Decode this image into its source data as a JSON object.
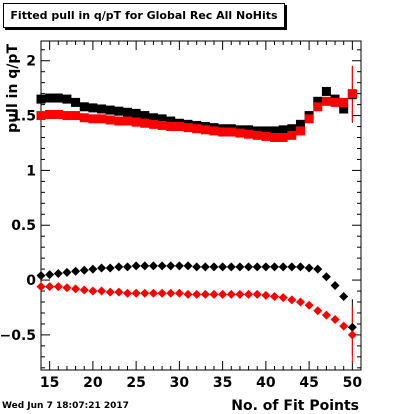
{
  "header": {
    "title": "Fitted pull in q/pT for Global Rec All NoHits"
  },
  "footer": {
    "timestamp": "Wed Jun  7 18:07:21 2017"
  },
  "chart_data": {
    "type": "scatter",
    "title": "Fitted pull in q/pT for Global Rec All NoHits",
    "xlabel": "No. of Fit Points",
    "ylabel": "pull in q/pT",
    "xlim": [
      14,
      51
    ],
    "ylim": [
      -0.82,
      2.18
    ],
    "x_ticks": [
      15,
      20,
      25,
      30,
      35,
      40,
      45,
      50
    ],
    "x_tick_labels": [
      "15",
      "20",
      "25",
      "30",
      "35",
      "40",
      "45",
      "50"
    ],
    "y_ticks": [
      -0.5,
      0,
      0.5,
      1,
      1.5,
      2
    ],
    "y_tick_labels": [
      "−0.5",
      "0",
      "0.5",
      "1",
      "1.5",
      "2"
    ],
    "grid": false,
    "series": [
      {
        "marker": "square",
        "color": "#000000",
        "x": [
          14,
          15,
          16,
          17,
          18,
          19,
          20,
          21,
          22,
          23,
          24,
          25,
          26,
          27,
          28,
          29,
          30,
          31,
          32,
          33,
          34,
          35,
          36,
          37,
          38,
          39,
          40,
          41,
          42,
          43,
          44,
          45,
          46,
          47,
          48,
          49,
          50
        ],
        "y": [
          1.65,
          1.66,
          1.66,
          1.65,
          1.62,
          1.58,
          1.57,
          1.56,
          1.55,
          1.54,
          1.53,
          1.52,
          1.5,
          1.48,
          1.47,
          1.45,
          1.43,
          1.42,
          1.41,
          1.4,
          1.39,
          1.38,
          1.38,
          1.37,
          1.37,
          1.36,
          1.36,
          1.36,
          1.37,
          1.38,
          1.42,
          1.5,
          1.63,
          1.72,
          1.65,
          1.56,
          1.69
        ]
      },
      {
        "marker": "square",
        "color": "#ff0000",
        "x": [
          14,
          15,
          16,
          17,
          18,
          19,
          20,
          21,
          22,
          23,
          24,
          25,
          26,
          27,
          28,
          29,
          30,
          31,
          32,
          33,
          34,
          35,
          36,
          37,
          38,
          39,
          40,
          41,
          42,
          43,
          44,
          45,
          46,
          47,
          48,
          49,
          50
        ],
        "y": [
          1.5,
          1.51,
          1.51,
          1.5,
          1.5,
          1.48,
          1.47,
          1.47,
          1.46,
          1.45,
          1.45,
          1.44,
          1.43,
          1.42,
          1.41,
          1.4,
          1.4,
          1.39,
          1.38,
          1.37,
          1.36,
          1.35,
          1.35,
          1.34,
          1.33,
          1.32,
          1.31,
          1.3,
          1.3,
          1.32,
          1.36,
          1.47,
          1.58,
          1.63,
          1.62,
          1.62,
          1.7
        ]
      },
      {
        "marker": "diamond",
        "color": "#000000",
        "x": [
          14,
          15,
          16,
          17,
          18,
          19,
          20,
          21,
          22,
          23,
          24,
          25,
          26,
          27,
          28,
          29,
          30,
          31,
          32,
          33,
          34,
          35,
          36,
          37,
          38,
          39,
          40,
          41,
          42,
          43,
          44,
          45,
          46,
          47,
          48,
          49,
          50
        ],
        "y": [
          0.04,
          0.05,
          0.06,
          0.07,
          0.08,
          0.09,
          0.1,
          0.11,
          0.11,
          0.12,
          0.12,
          0.13,
          0.13,
          0.13,
          0.13,
          0.13,
          0.13,
          0.13,
          0.12,
          0.12,
          0.12,
          0.12,
          0.12,
          0.12,
          0.12,
          0.12,
          0.12,
          0.12,
          0.12,
          0.12,
          0.12,
          0.11,
          0.1,
          0.03,
          -0.05,
          -0.15,
          -0.43
        ]
      },
      {
        "marker": "diamond",
        "color": "#ff0000",
        "x": [
          14,
          15,
          16,
          17,
          18,
          19,
          20,
          21,
          22,
          23,
          24,
          25,
          26,
          27,
          28,
          29,
          30,
          31,
          32,
          33,
          34,
          35,
          36,
          37,
          38,
          39,
          40,
          41,
          42,
          43,
          44,
          45,
          46,
          47,
          48,
          49,
          50
        ],
        "y": [
          -0.06,
          -0.06,
          -0.06,
          -0.07,
          -0.08,
          -0.09,
          -0.1,
          -0.1,
          -0.11,
          -0.11,
          -0.12,
          -0.12,
          -0.12,
          -0.12,
          -0.12,
          -0.12,
          -0.12,
          -0.13,
          -0.13,
          -0.13,
          -0.13,
          -0.13,
          -0.13,
          -0.13,
          -0.13,
          -0.13,
          -0.14,
          -0.15,
          -0.16,
          -0.18,
          -0.2,
          -0.23,
          -0.28,
          -0.32,
          -0.36,
          -0.42,
          -0.5
        ]
      }
    ]
  }
}
